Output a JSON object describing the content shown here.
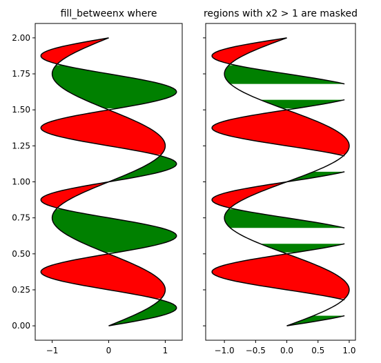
{
  "chart_data": [
    {
      "type": "area",
      "title": "fill_betweenx where",
      "xlabel": "",
      "ylabel": "",
      "xlim": [
        -1.3,
        1.3
      ],
      "ylim": [
        -0.1,
        2.1
      ],
      "xticks": [
        -1,
        0,
        1
      ],
      "xtick_labels": [
        "−1",
        "0",
        "1"
      ],
      "yticks": [
        0.0,
        0.25,
        0.5,
        0.75,
        1.0,
        1.25,
        1.5,
        1.75,
        2.0
      ],
      "ytick_labels": [
        "0.00",
        "0.25",
        "0.50",
        "0.75",
        "1.00",
        "1.25",
        "1.50",
        "1.75",
        "2.00"
      ],
      "grid": false,
      "series": [
        {
          "function": "x1 = sin(2*pi*y)",
          "y_range": [
            0,
            2
          ],
          "step": 0.01
        },
        {
          "function": "x2 = 1.2*sin(4*pi*y)",
          "y_range": [
            0,
            2
          ],
          "step": 0.01
        }
      ],
      "fills": [
        {
          "where": "x2 >= x1",
          "color": "#008000"
        },
        {
          "where": "x2 <= x1",
          "color": "#ff0000"
        }
      ],
      "masked": false
    },
    {
      "type": "area",
      "title": "regions with x2 > 1 are masked",
      "xlabel": "",
      "ylabel": "",
      "xlim": [
        -1.3,
        1.1
      ],
      "ylim": [
        -0.1,
        2.1
      ],
      "xticks": [
        -1.0,
        -0.5,
        0.0,
        0.5,
        1.0
      ],
      "xtick_labels": [
        "−1.0",
        "−0.5",
        "0.0",
        "0.5",
        "1.0"
      ],
      "yticks": [
        0.0,
        0.25,
        0.5,
        0.75,
        1.0,
        1.25,
        1.5,
        1.75,
        2.0
      ],
      "ytick_labels": [],
      "sharey": true,
      "grid": false,
      "series": [
        {
          "function": "x1 = sin(2*pi*y)",
          "y_range": [
            0,
            2
          ],
          "step": 0.01
        },
        {
          "function": "x2 = 1.2*sin(4*pi*y), masked where > 1",
          "y_range": [
            0,
            2
          ],
          "step": 0.01
        }
      ],
      "fills": [
        {
          "where": "x2 >= x1",
          "color": "#008000"
        },
        {
          "where": "x2 <= x1",
          "color": "#ff0000"
        }
      ],
      "masked": true
    }
  ]
}
